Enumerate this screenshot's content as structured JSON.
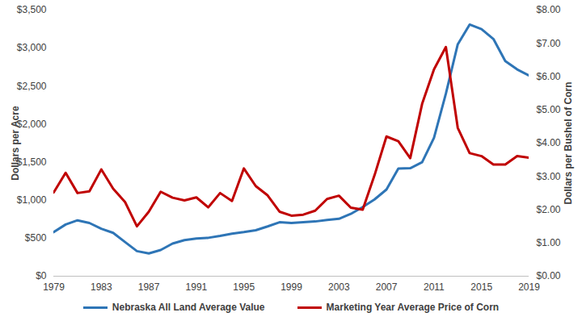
{
  "chart_data": {
    "type": "line",
    "x": [
      1979,
      1980,
      1981,
      1982,
      1983,
      1984,
      1985,
      1986,
      1987,
      1988,
      1989,
      1990,
      1991,
      1992,
      1993,
      1994,
      1995,
      1996,
      1997,
      1998,
      1999,
      2000,
      2001,
      2002,
      2003,
      2004,
      2005,
      2006,
      2007,
      2008,
      2009,
      2010,
      2011,
      2012,
      2013,
      2014,
      2015,
      2016,
      2017,
      2018,
      2019
    ],
    "xlim": [
      1979,
      2019
    ],
    "xticks": [
      1979,
      1983,
      1987,
      1991,
      1995,
      1999,
      2003,
      2007,
      2011,
      2015,
      2019
    ],
    "ylabel": "Dollars per Acre",
    "ylim": [
      0,
      3500
    ],
    "yticks": [
      {
        "value": 0,
        "label": "$0"
      },
      {
        "value": 500,
        "label": "$500"
      },
      {
        "value": 1000,
        "label": "$1,000"
      },
      {
        "value": 1500,
        "label": "$1,500"
      },
      {
        "value": 2000,
        "label": "$2,000"
      },
      {
        "value": 2500,
        "label": "$2,500"
      },
      {
        "value": 3000,
        "label": "$3,000"
      },
      {
        "value": 3500,
        "label": "$3,500"
      }
    ],
    "y2label": "Dollars per Bushel of Corn",
    "y2lim": [
      0,
      8
    ],
    "y2ticks": [
      {
        "value": 0,
        "label": "$0.00"
      },
      {
        "value": 1,
        "label": "$1.00"
      },
      {
        "value": 2,
        "label": "$2.00"
      },
      {
        "value": 3,
        "label": "$3.00"
      },
      {
        "value": 4,
        "label": "$4.00"
      },
      {
        "value": 5,
        "label": "$5.00"
      },
      {
        "value": 6,
        "label": "$6.00"
      },
      {
        "value": 7,
        "label": "$7.00"
      },
      {
        "value": 8,
        "label": "$8.00"
      }
    ],
    "series": [
      {
        "name": "Nebraska All Land Average Value",
        "color": "#2E75B6",
        "values": [
          580,
          680,
          735,
          700,
          625,
          570,
          450,
          330,
          300,
          345,
          430,
          475,
          495,
          505,
          530,
          560,
          580,
          605,
          655,
          710,
          700,
          710,
          720,
          740,
          755,
          820,
          910,
          1010,
          1140,
          1415,
          1420,
          1500,
          1820,
          2400,
          3050,
          3310,
          3250,
          3120,
          2830,
          2720,
          2640
        ]
      },
      {
        "name": "Marketing Year Average Price of Corn",
        "color": "#C00000",
        "axis": "y2",
        "values": [
          2.52,
          3.11,
          2.5,
          2.55,
          3.21,
          2.63,
          2.23,
          1.5,
          1.94,
          2.54,
          2.36,
          2.28,
          2.37,
          2.07,
          2.5,
          2.26,
          3.24,
          2.71,
          2.43,
          1.94,
          1.82,
          1.85,
          1.97,
          2.32,
          2.42,
          2.06,
          2.0,
          3.04,
          4.2,
          4.06,
          3.55,
          5.18,
          6.22,
          6.89,
          4.46,
          3.7,
          3.61,
          3.36,
          3.36,
          3.61,
          3.56
        ]
      }
    ],
    "grid": false,
    "legend": "bottom"
  }
}
